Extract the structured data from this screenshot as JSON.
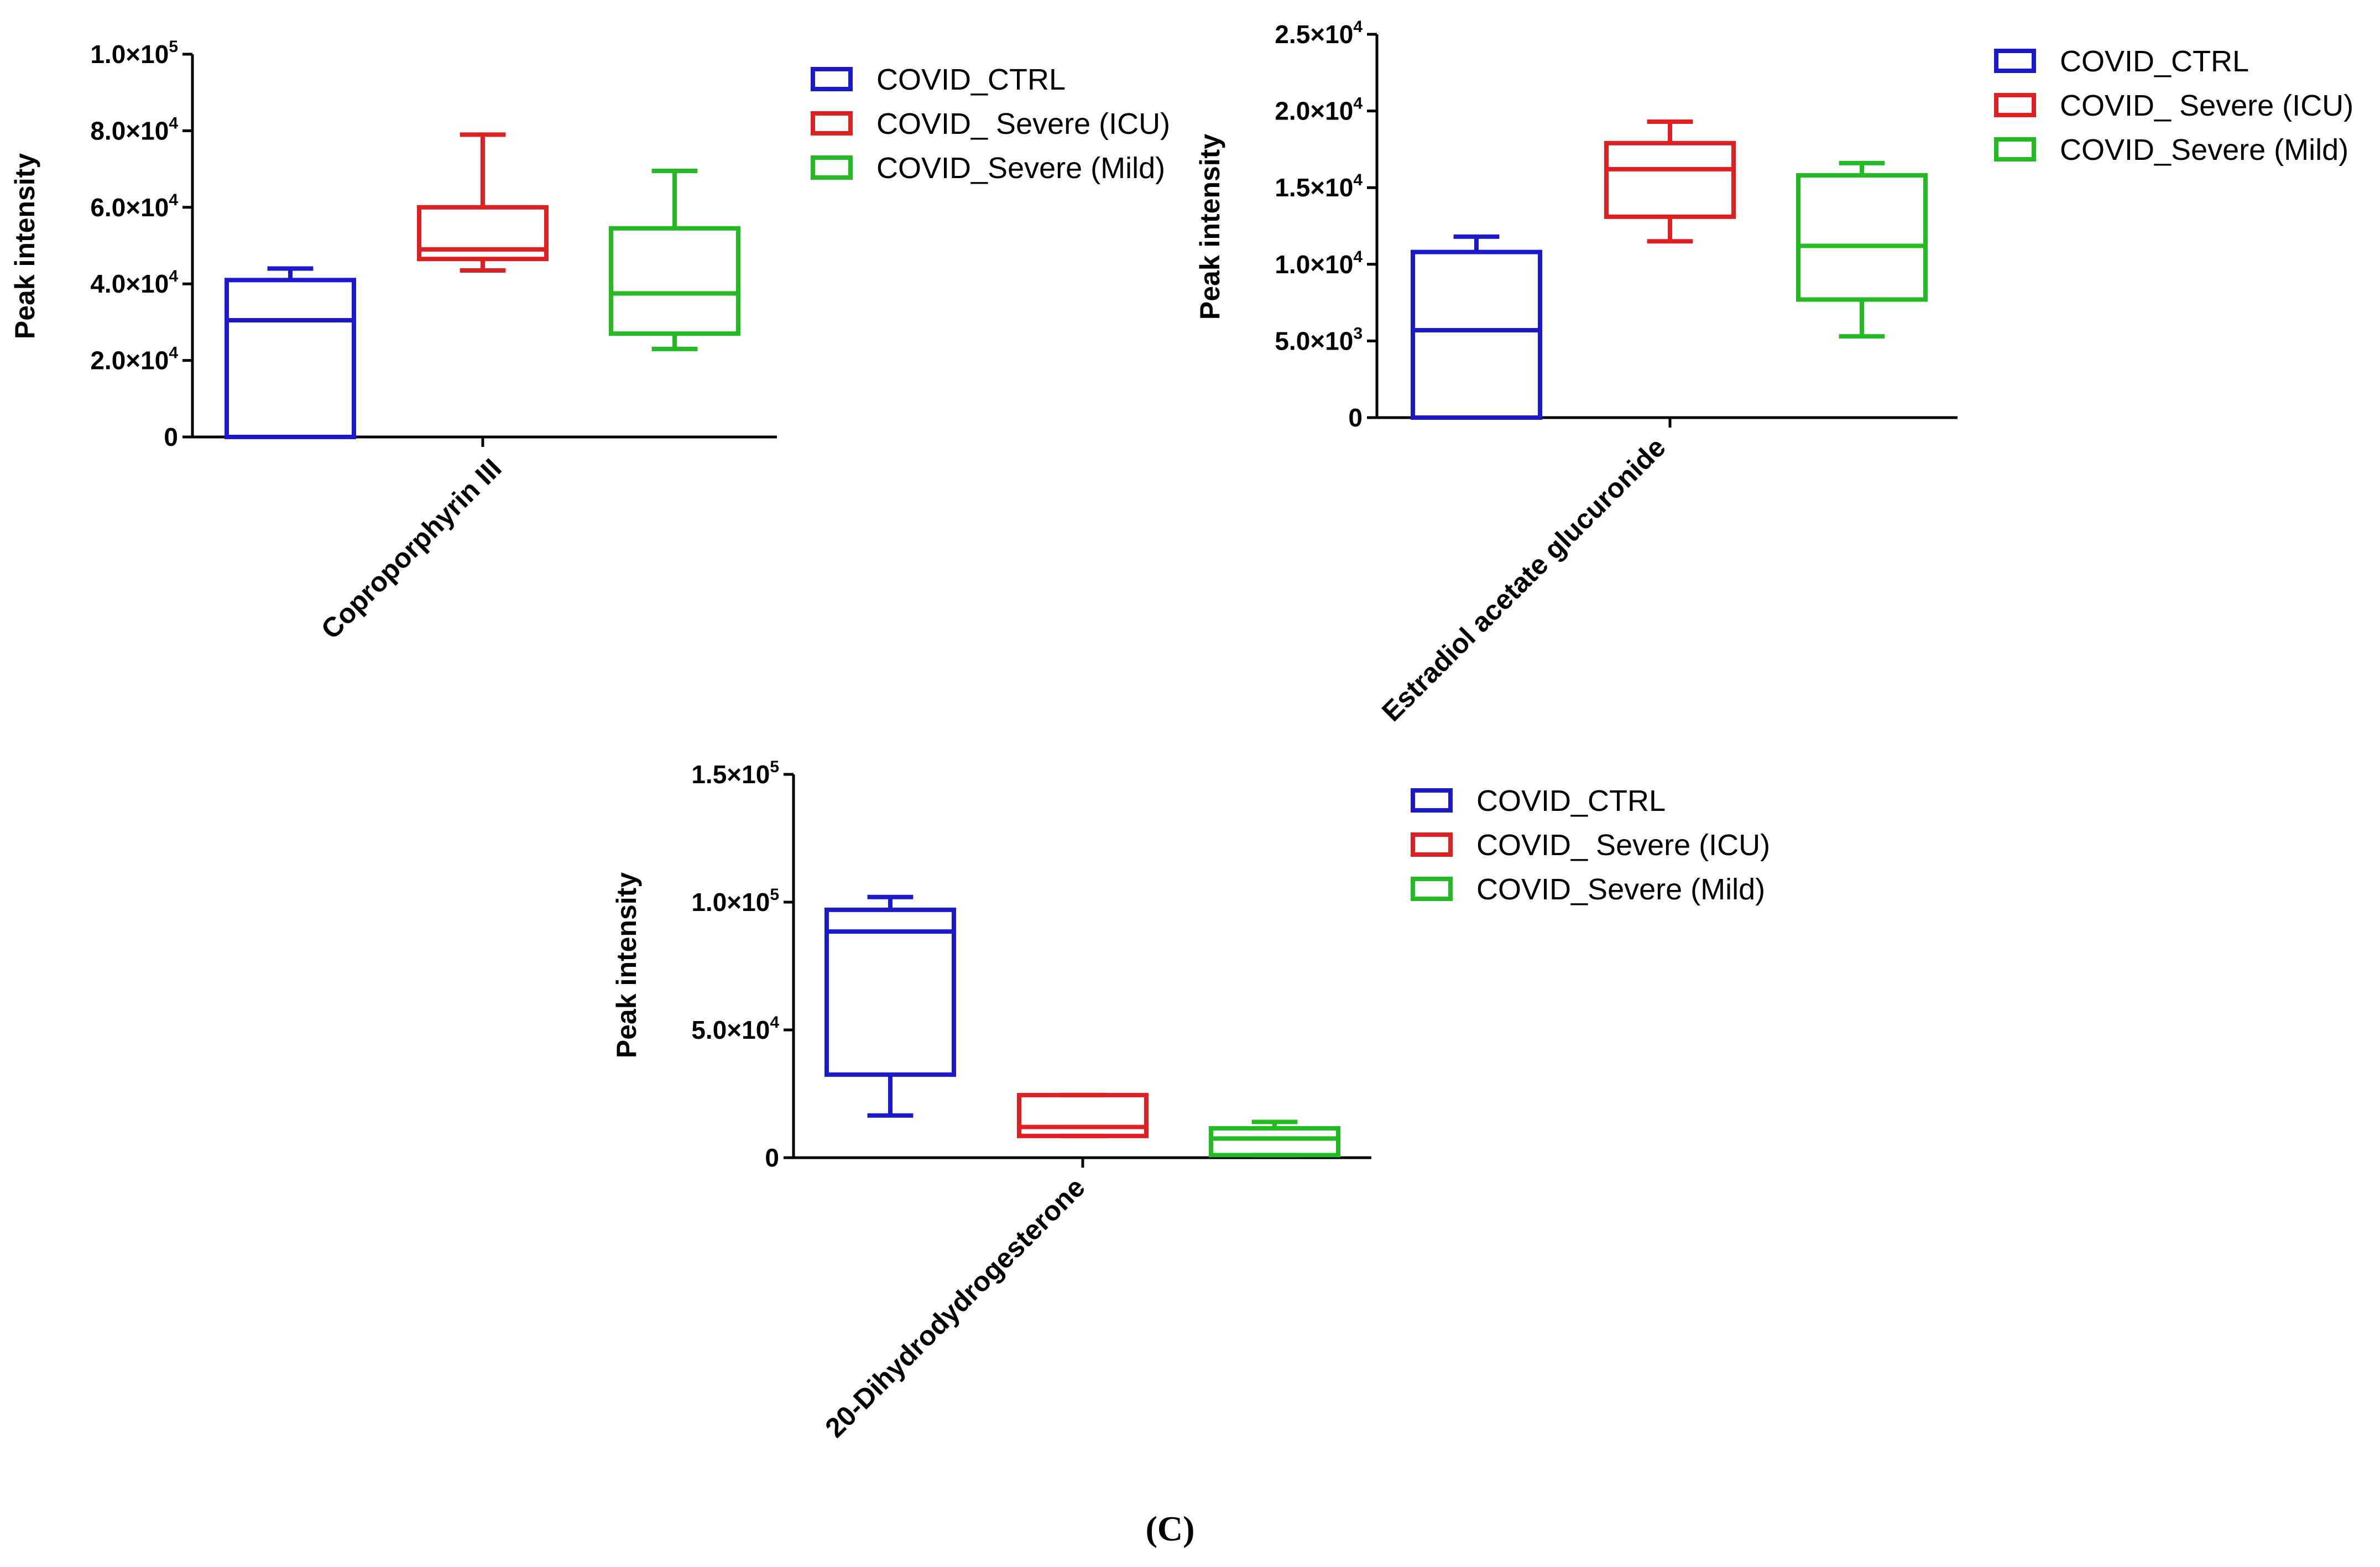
{
  "panel_label_open": "(",
  "panel_label_letter": "C",
  "panel_label_close": ")",
  "colors": {
    "COVID_CTRL": "#1a1acc",
    "COVID_ICU": "#e02020",
    "COVID_Mild": "#22bb22"
  },
  "legend": [
    "COVID_CTRL",
    "COVID_ Severe (ICU)",
    "COVID_Severe (Mild)"
  ],
  "chart_data": [
    {
      "type": "box",
      "category": "Coproporphyrin III",
      "ylabel": "Peak intensity",
      "ylim": [
        0,
        100000
      ],
      "y_ticks": [
        {
          "v": 0,
          "m": "0",
          "e": ""
        },
        {
          "v": 20000,
          "m": "2.0×10",
          "e": "4"
        },
        {
          "v": 40000,
          "m": "4.0×10",
          "e": "4"
        },
        {
          "v": 60000,
          "m": "6.0×10",
          "e": "4"
        },
        {
          "v": 80000,
          "m": "8.0×10",
          "e": "4"
        },
        {
          "v": 100000,
          "m": "1.0×10",
          "e": "5"
        }
      ],
      "series": [
        {
          "name": "COVID_CTRL",
          "min": 0,
          "q1": 0,
          "median": 30500,
          "q3": 41000,
          "max": 44000
        },
        {
          "name": "COVID_ Severe (ICU)",
          "min": 43500,
          "q1": 46500,
          "median": 49000,
          "q3": 60000,
          "max": 79000
        },
        {
          "name": "COVID_Severe (Mild)",
          "min": 23000,
          "q1": 27000,
          "median": 37500,
          "q3": 54500,
          "max": 69500
        }
      ]
    },
    {
      "type": "box",
      "category": "Estradiol acetate glucuronide",
      "ylabel": "Peak intensity",
      "ylim": [
        0,
        25000
      ],
      "y_ticks": [
        {
          "v": 0,
          "m": "0",
          "e": ""
        },
        {
          "v": 5000,
          "m": "5.0×10",
          "e": "3"
        },
        {
          "v": 10000,
          "m": "1.0×10",
          "e": "4"
        },
        {
          "v": 15000,
          "m": "1.5×10",
          "e": "4"
        },
        {
          "v": 20000,
          "m": "2.0×10",
          "e": "4"
        },
        {
          "v": 25000,
          "m": "2.5×10",
          "e": "4"
        }
      ],
      "series": [
        {
          "name": "COVID_CTRL",
          "min": 0,
          "q1": 0,
          "median": 5700,
          "q3": 10800,
          "max": 11800
        },
        {
          "name": "COVID_ Severe (ICU)",
          "min": 11500,
          "q1": 13100,
          "median": 16200,
          "q3": 17900,
          "max": 19300
        },
        {
          "name": "COVID_Severe (Mild)",
          "min": 5300,
          "q1": 7700,
          "median": 11200,
          "q3": 15800,
          "max": 16600
        }
      ]
    },
    {
      "type": "box",
      "category": "20-Dihydrodydrogesterone",
      "ylabel": "Peak intensity",
      "ylim": [
        0,
        150000
      ],
      "y_ticks": [
        {
          "v": 0,
          "m": "0",
          "e": ""
        },
        {
          "v": 50000,
          "m": "5.0×10",
          "e": "4"
        },
        {
          "v": 100000,
          "m": "1.0×10",
          "e": "5"
        },
        {
          "v": 150000,
          "m": "1.5×10",
          "e": "5"
        }
      ],
      "series": [
        {
          "name": "COVID_CTRL",
          "min": 16500,
          "q1": 32500,
          "median": 88500,
          "q3": 97000,
          "max": 102000
        },
        {
          "name": "COVID_ Severe (ICU)",
          "min": 8500,
          "q1": 8500,
          "median": 12000,
          "q3": 24500,
          "max": 24500
        },
        {
          "name": "COVID_Severe (Mild)",
          "min": 1000,
          "q1": 1000,
          "median": 7500,
          "q3": 11500,
          "max": 14000
        }
      ]
    }
  ]
}
